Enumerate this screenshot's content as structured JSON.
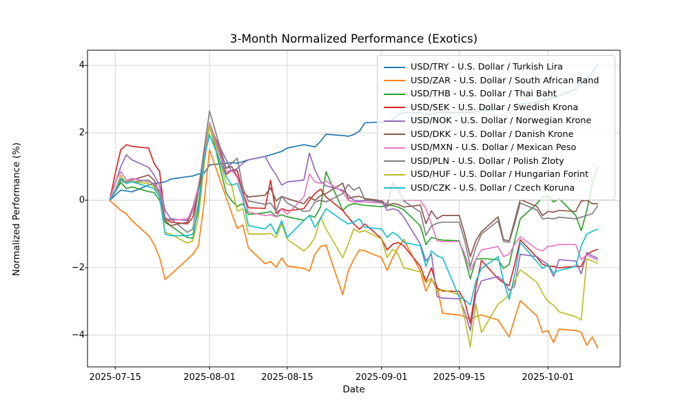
{
  "chart_data": {
    "type": "line",
    "title": "3-Month Normalized Performance (Exotics)",
    "xlabel": "Date",
    "ylabel": "Normalized Performance (%)",
    "grid": true,
    "legend_position": "upper right",
    "ylim": [
      -4.94,
      4.45
    ],
    "xlim": [
      "2025-07-10",
      "2025-10-14"
    ],
    "y_ticks": [
      4,
      2,
      0,
      -2,
      -4
    ],
    "x_ticks": [
      "2025-07-15",
      "2025-08-01",
      "2025-08-15",
      "2025-09-01",
      "2025-09-15",
      "2025-10-01"
    ],
    "dates": [
      "2025-07-14",
      "2025-07-15",
      "2025-07-16",
      "2025-07-17",
      "2025-07-18",
      "2025-07-21",
      "2025-07-22",
      "2025-07-23",
      "2025-07-24",
      "2025-07-25",
      "2025-07-28",
      "2025-07-29",
      "2025-07-30",
      "2025-07-31",
      "2025-08-01",
      "2025-08-04",
      "2025-08-05",
      "2025-08-06",
      "2025-08-07",
      "2025-08-08",
      "2025-08-11",
      "2025-08-12",
      "2025-08-13",
      "2025-08-14",
      "2025-08-15",
      "2025-08-18",
      "2025-08-19",
      "2025-08-20",
      "2025-08-21",
      "2025-08-22",
      "2025-08-25",
      "2025-08-26",
      "2025-08-27",
      "2025-08-28",
      "2025-08-29",
      "2025-09-01",
      "2025-09-02",
      "2025-09-03",
      "2025-09-04",
      "2025-09-05",
      "2025-09-08",
      "2025-09-09",
      "2025-09-10",
      "2025-09-11",
      "2025-09-12",
      "2025-09-15",
      "2025-09-16",
      "2025-09-17",
      "2025-09-18",
      "2025-09-19",
      "2025-09-22",
      "2025-09-23",
      "2025-09-24",
      "2025-09-25",
      "2025-09-26",
      "2025-09-29",
      "2025-09-30",
      "2025-10-01",
      "2025-10-02",
      "2025-10-03",
      "2025-10-06",
      "2025-10-07",
      "2025-10-08",
      "2025-10-09",
      "2025-10-10"
    ],
    "series": [
      {
        "name": "USD/TRY - U.S. Dollar / Turkish Lira",
        "color": "#1f77b4",
        "values": [
          0,
          0.15,
          0.3,
          0.28,
          0.25,
          0.45,
          0.5,
          0.52,
          0.55,
          0.63,
          0.7,
          0.72,
          0.78,
          0.8,
          1.05,
          1.1,
          1.12,
          1.1,
          1.15,
          1.2,
          1.3,
          1.35,
          1.4,
          1.45,
          1.55,
          1.65,
          1.62,
          1.58,
          1.75,
          1.96,
          1.92,
          1.9,
          1.95,
          2.05,
          2.3,
          2.32,
          2.35,
          2.4,
          2.55,
          2.6,
          2.6,
          2.55,
          2.55,
          2.6,
          2.62,
          2.6,
          2.62,
          2.6,
          2.62,
          2.65,
          2.7,
          2.72,
          2.75,
          2.78,
          2.85,
          2.9,
          2.95,
          3.0,
          3.05,
          3.1,
          3.3,
          3.45,
          3.6,
          3.8,
          4.05
        ]
      },
      {
        "name": "USD/ZAR - U.S. Dollar / South African Rand",
        "color": "#ff7f0e",
        "values": [
          0,
          -0.15,
          -0.3,
          -0.4,
          -0.6,
          -1.05,
          -1.3,
          -1.7,
          -2.35,
          -2.2,
          -1.75,
          -1.6,
          -1.35,
          -0.1,
          1.5,
          0.08,
          -0.39,
          -0.84,
          -0.73,
          -1.41,
          -1.88,
          -1.82,
          -1.98,
          -1.71,
          -1.95,
          -2.02,
          -2.1,
          -1.6,
          -1.37,
          -1.33,
          -2.8,
          -2.1,
          -1.75,
          -1.47,
          -1.5,
          -1.7,
          -2.08,
          -1.7,
          -1.4,
          -1.16,
          -2.1,
          -2.7,
          -2.35,
          -2.55,
          -3.35,
          -3.4,
          -3.45,
          -3.52,
          -3.45,
          -3.4,
          -3.55,
          -3.8,
          -4.05,
          -3.5,
          -2.98,
          -3.43,
          -3.92,
          -3.86,
          -4.22,
          -3.82,
          -3.86,
          -3.92,
          -4.3,
          -4.05,
          -4.4
        ]
      },
      {
        "name": "USD/THB - U.S. Dollar / Thai Baht",
        "color": "#2ca02c",
        "values": [
          0,
          0.25,
          0.53,
          0.35,
          0.4,
          0.26,
          0.23,
          0.0,
          -0.66,
          -0.76,
          -1.1,
          -1.13,
          -0.1,
          1.2,
          2.25,
          0.22,
          -0.02,
          -0.18,
          -0.1,
          -0.42,
          -0.37,
          -0.33,
          -0.49,
          -0.43,
          -0.49,
          -0.59,
          -0.45,
          -0.5,
          -0.2,
          0.85,
          -0.3,
          -0.15,
          -0.1,
          -0.12,
          -0.15,
          -0.19,
          -0.15,
          -0.16,
          -0.2,
          -0.28,
          -0.76,
          -1.31,
          -1.1,
          -1.15,
          -1.18,
          -1.2,
          -1.7,
          -2.33,
          -1.75,
          -1.73,
          -1.76,
          -2.02,
          -1.9,
          -1.2,
          -0.55,
          -0.1,
          0.1,
          0.12,
          -0.05,
          0.05,
          -0.45,
          -0.9,
          -0.3,
          0.5,
          1.0
        ]
      },
      {
        "name": "USD/SEK - U.S. Dollar / Swedish Krona",
        "color": "#d62728",
        "values": [
          0,
          0.8,
          1.5,
          1.65,
          1.6,
          1.55,
          1.1,
          0.85,
          -0.55,
          -0.65,
          -0.7,
          -0.5,
          0.3,
          1.1,
          2.3,
          0.77,
          0.9,
          0.88,
          0.22,
          -0.22,
          -0.24,
          0.6,
          -0.39,
          -0.24,
          -0.31,
          -0.25,
          0.0,
          0.2,
          0.33,
          0.1,
          -0.3,
          -0.5,
          -0.7,
          -0.86,
          -0.7,
          -1.14,
          -1.47,
          -1.3,
          -1.25,
          -1.35,
          -1.96,
          -2.4,
          -2.0,
          -2.6,
          -2.69,
          -2.7,
          -3.0,
          -3.65,
          -2.6,
          -1.78,
          -2.33,
          -2.45,
          -2.53,
          -1.9,
          -1.17,
          -1.69,
          -1.9,
          -1.95,
          -1.96,
          -2.0,
          -1.96,
          -1.96,
          -1.61,
          -1.51,
          -1.45
        ]
      },
      {
        "name": "USD/NOK - U.S. Dollar / Norwegian Krone",
        "color": "#9467bd",
        "values": [
          0,
          0.5,
          1.0,
          1.35,
          1.2,
          0.98,
          0.75,
          0.43,
          -0.3,
          -0.55,
          -0.6,
          -0.2,
          0.4,
          1.2,
          2.2,
          1.2,
          0.85,
          0.95,
          1.1,
          1.2,
          1.3,
          1.0,
          0.75,
          0.45,
          0.55,
          0.6,
          1.4,
          0.9,
          0.57,
          0.43,
          0.3,
          0.15,
          0.0,
          -0.02,
          0.0,
          -0.02,
          -0.3,
          -0.25,
          -0.3,
          -0.5,
          -1.3,
          -1.8,
          -1.6,
          -2.85,
          -2.9,
          -2.92,
          -3.3,
          -3.86,
          -2.8,
          -2.39,
          -2.26,
          -2.4,
          -2.67,
          -2.55,
          -1.6,
          -1.67,
          -1.8,
          -1.9,
          -2.26,
          -1.76,
          -1.8,
          -2.18,
          -1.55,
          -1.65,
          -1.72
        ]
      },
      {
        "name": "USD/DKK - U.S. Dollar / Danish Krone",
        "color": "#8c564b",
        "values": [
          0,
          0.3,
          0.65,
          0.55,
          0.6,
          0.75,
          0.6,
          0.25,
          -0.6,
          -0.75,
          -0.65,
          -0.3,
          0.35,
          1.3,
          2.3,
          0.95,
          1.0,
          0.7,
          0.25,
          0.1,
          0.15,
          0.37,
          -0.02,
          0.12,
          0.05,
          -0.1,
          0.1,
          0.0,
          0.14,
          0.2,
          0.51,
          0.04,
          0.1,
          0.12,
          0.05,
          -0.01,
          -0.15,
          -0.1,
          -0.12,
          -0.2,
          -0.14,
          -0.69,
          -0.31,
          -0.55,
          -0.45,
          -0.45,
          -1.0,
          -1.67,
          -1.2,
          -0.93,
          -0.49,
          -1.17,
          -1.2,
          -0.6,
          0.02,
          -0.18,
          -0.45,
          -0.33,
          -0.35,
          -0.3,
          -0.33,
          -0.02,
          0.0,
          -0.1,
          -0.1
        ]
      },
      {
        "name": "USD/MXN - U.S. Dollar / Mexican Peso",
        "color": "#e377c2",
        "values": [
          0,
          0.55,
          0.85,
          0.6,
          0.65,
          0.55,
          0.5,
          0.3,
          -0.5,
          -0.6,
          -0.55,
          -0.3,
          0.45,
          1.25,
          2.3,
          0.84,
          0.9,
          0.67,
          0.16,
          -0.35,
          -0.45,
          -0.43,
          -0.49,
          -0.25,
          -0.42,
          0.1,
          0.78,
          0.55,
          0.5,
          0.57,
          0.25,
          0.0,
          -0.05,
          -0.05,
          -0.05,
          -0.08,
          -0.1,
          0.45,
          0.4,
          0.0,
          0.0,
          -0.25,
          -0.7,
          -1.2,
          -1.22,
          -1.22,
          -1.6,
          -2.08,
          -1.75,
          -1.47,
          -1.37,
          -1.67,
          -1.6,
          -1.3,
          -1.08,
          -1.45,
          -1.5,
          -1.37,
          -1.35,
          -1.31,
          -1.31,
          -1.76,
          -1.62,
          -1.7,
          -1.78
        ]
      },
      {
        "name": "USD/PLN - U.S. Dollar / Polish Zloty",
        "color": "#7f7f7f",
        "values": [
          0,
          0.25,
          0.6,
          0.5,
          0.55,
          0.6,
          0.45,
          0.2,
          -0.6,
          -0.55,
          -0.95,
          -0.85,
          0.3,
          1.5,
          2.65,
          0.94,
          1.1,
          1.25,
          0.37,
          -0.02,
          -0.12,
          -0.08,
          -0.32,
          0.12,
          -0.08,
          -0.33,
          -0.31,
          -0.05,
          0.0,
          -0.05,
          0.2,
          0.47,
          0.3,
          0.39,
          0.02,
          -0.06,
          -0.2,
          0.53,
          0.3,
          -0.02,
          -0.35,
          -1.04,
          -0.76,
          -0.68,
          -0.65,
          -0.65,
          -1.2,
          -1.96,
          -1.4,
          -1.0,
          -0.61,
          -1.22,
          -1.25,
          -0.7,
          -0.08,
          -0.29,
          -0.55,
          -0.53,
          -0.55,
          -0.5,
          -0.55,
          -0.5,
          -0.45,
          -0.4,
          -0.15
        ]
      },
      {
        "name": "USD/HUF - U.S. Dollar / Hungarian Forint",
        "color": "#bcbd22",
        "values": [
          0,
          0.3,
          0.75,
          0.5,
          0.55,
          0.5,
          0.4,
          0.1,
          -0.95,
          -1.0,
          -1.27,
          -1.2,
          -0.5,
          1.0,
          2.25,
          0.5,
          0.43,
          -0.32,
          -0.25,
          -1.0,
          -1.0,
          -0.98,
          -1.1,
          -0.69,
          -1.16,
          -1.5,
          -1.35,
          -1.1,
          -0.5,
          -0.85,
          -1.7,
          -1.3,
          -0.85,
          -0.95,
          -0.9,
          -1.15,
          -1.7,
          -1.45,
          -1.6,
          -2.0,
          -2.12,
          -2.45,
          -2.3,
          -2.7,
          -2.65,
          -2.8,
          -3.5,
          -4.35,
          -3.08,
          -3.92,
          -3.08,
          -2.95,
          -2.8,
          -2.4,
          -2.06,
          -2.43,
          -2.75,
          -3.0,
          -3.11,
          -3.31,
          -3.45,
          -3.55,
          -1.74,
          -1.8,
          -1.88
        ]
      },
      {
        "name": "USD/CZK - U.S. Dollar / Czech Koruna",
        "color": "#17becf",
        "values": [
          0,
          0.3,
          0.65,
          0.5,
          0.55,
          0.4,
          0.35,
          0.1,
          -1.0,
          -1.05,
          -1.05,
          -1.0,
          -0.3,
          1.2,
          1.95,
          0.7,
          0.45,
          0.5,
          0.05,
          -0.75,
          -0.85,
          -0.7,
          -1.0,
          -0.6,
          -1.1,
          -0.6,
          -0.45,
          -0.8,
          -0.55,
          -0.25,
          -0.6,
          -0.7,
          -0.65,
          -0.55,
          -0.8,
          -0.85,
          -1.1,
          -0.95,
          -1.05,
          -1.25,
          -1.35,
          -1.96,
          -1.5,
          -1.65,
          -1.7,
          -2.87,
          -2.95,
          -3.1,
          -2.4,
          -2.02,
          -1.67,
          -2.4,
          -2.94,
          -2.2,
          -1.25,
          -1.82,
          -2.02,
          -1.9,
          -2.16,
          -2.08,
          -1.96,
          -1.35,
          -1.0,
          -0.92,
          -0.85
        ]
      }
    ]
  },
  "style": {
    "grid_color": "#cfcfcf",
    "spine_color": "#000000",
    "background": "#ffffff"
  }
}
